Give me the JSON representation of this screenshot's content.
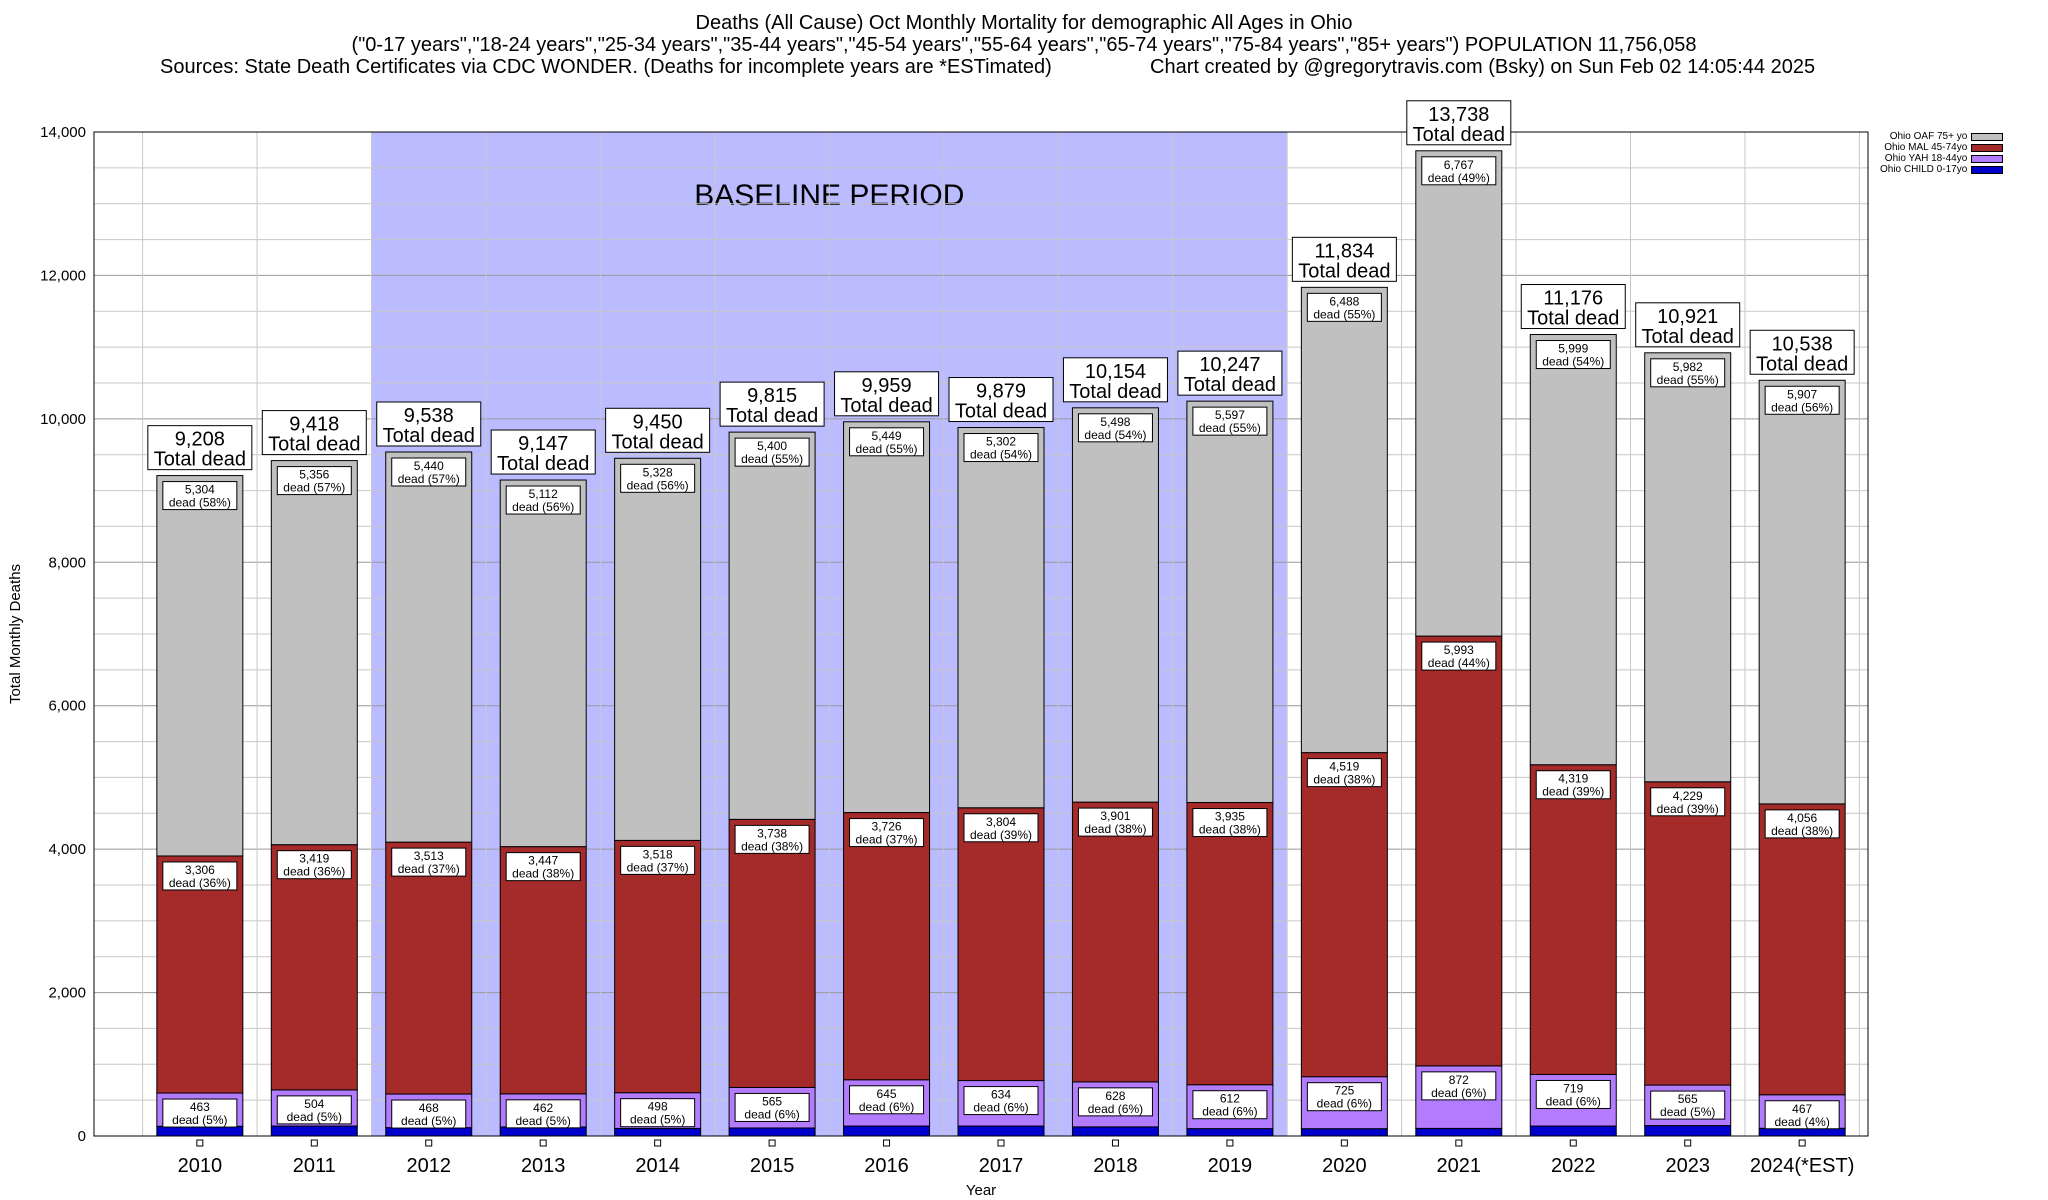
{
  "title": {
    "line1": "Deaths (All Cause) Oct Monthly Mortality for demographic All Ages in Ohio",
    "line2": "(\"0-17 years\",\"18-24 years\",\"25-34 years\",\"35-44 years\",\"45-54 years\",\"55-64 years\",\"65-74 years\",\"75-84 years\",\"85+ years\") POPULATION 11,756,058",
    "line3_left": "Sources: State Death Certificates via CDC WONDER. (Deaths for incomplete years are *ESTimated)",
    "line3_right": "Chart created by @gregorytravis.com (Bsky) on Sun Feb 02 14:05:44 2025"
  },
  "baseline_label": "BASELINE PERIOD",
  "total_suffix": "Total dead",
  "chart_data": {
    "type": "bar",
    "stacked": true,
    "xlabel": "Year",
    "ylabel": "Total Monthly Deaths",
    "ylim": [
      0,
      14000
    ],
    "yticks": [
      "0",
      "2,000",
      "4,000",
      "6,000",
      "8,000",
      "10,000",
      "12,000",
      "14,000"
    ],
    "grid": true,
    "legend_position": "top-right",
    "baseline_period": [
      "2012",
      "2019"
    ],
    "categories": [
      "2010",
      "2011",
      "2012",
      "2013",
      "2014",
      "2015",
      "2016",
      "2017",
      "2018",
      "2019",
      "2020",
      "2021",
      "2022",
      "2023",
      "2024(*EST)"
    ],
    "totals": [
      9208,
      9418,
      9538,
      9147,
      9450,
      9815,
      9959,
      9879,
      10154,
      10247,
      11834,
      13738,
      11176,
      10921,
      10538
    ],
    "total_labels": [
      "9,208",
      "9,418",
      "9,538",
      "9,147",
      "9,450",
      "9,815",
      "9,959",
      "9,879",
      "10,154",
      "10,247",
      "11,834",
      "13,738",
      "11,176",
      "10,921",
      "10,538"
    ],
    "series": [
      {
        "name": "Ohio CHILD 0-17yo",
        "color": "#0000cc",
        "values": [
          136,
          139,
          117,
          126,
          106,
          112,
          139,
          139,
          127,
          103,
          102,
          106,
          139,
          145,
          108
        ]
      },
      {
        "name": "Ohio YAH 18-44yo",
        "color": "#b37cff",
        "values": [
          463,
          504,
          468,
          462,
          498,
          565,
          645,
          634,
          628,
          612,
          725,
          872,
          719,
          565,
          467
        ],
        "labels": [
          "463",
          "504",
          "468",
          "462",
          "498",
          "565",
          "645",
          "634",
          "628",
          "612",
          "725",
          "872",
          "719",
          "565",
          "467"
        ],
        "pcts": [
          "dead (5%)",
          "dead (5%)",
          "dead (5%)",
          "dead (5%)",
          "dead (5%)",
          "dead (6%)",
          "dead (6%)",
          "dead (6%)",
          "dead (6%)",
          "dead (6%)",
          "dead (6%)",
          "dead (6%)",
          "dead (6%)",
          "dead (5%)",
          "dead (4%)"
        ]
      },
      {
        "name": "Ohio MAL 45-74yo",
        "color": "#a52a2a",
        "values": [
          3306,
          3419,
          3513,
          3447,
          3518,
          3738,
          3726,
          3804,
          3901,
          3935,
          4519,
          5993,
          4319,
          4229,
          4056
        ],
        "labels": [
          "3,306",
          "3,419",
          "3,513",
          "3,447",
          "3,518",
          "3,738",
          "3,726",
          "3,804",
          "3,901",
          "3,935",
          "4,519",
          "5,993",
          "4,319",
          "4,229",
          "4,056"
        ],
        "pcts": [
          "dead (36%)",
          "dead (36%)",
          "dead (37%)",
          "dead (38%)",
          "dead (37%)",
          "dead (38%)",
          "dead (37%)",
          "dead (39%)",
          "dead (38%)",
          "dead (38%)",
          "dead (38%)",
          "dead (44%)",
          "dead (39%)",
          "dead (39%)",
          "dead (38%)"
        ]
      },
      {
        "name": "Ohio OAF 75+ yo",
        "color": "#c0c0c0",
        "values": [
          5304,
          5356,
          5440,
          5112,
          5328,
          5400,
          5449,
          5302,
          5498,
          5597,
          6488,
          6767,
          5999,
          5982,
          5907
        ],
        "labels": [
          "5,304",
          "5,356",
          "5,440",
          "5,112",
          "5,328",
          "5,400",
          "5,449",
          "5,302",
          "5,498",
          "5,597",
          "6,488",
          "6,767",
          "5,999",
          "5,982",
          "5,907"
        ],
        "pcts": [
          "dead (58%)",
          "dead (57%)",
          "dead (57%)",
          "dead (56%)",
          "dead (56%)",
          "dead (55%)",
          "dead (55%)",
          "dead (54%)",
          "dead (54%)",
          "dead (55%)",
          "dead (55%)",
          "dead (49%)",
          "dead (54%)",
          "dead (55%)",
          "dead (56%)"
        ]
      }
    ]
  }
}
